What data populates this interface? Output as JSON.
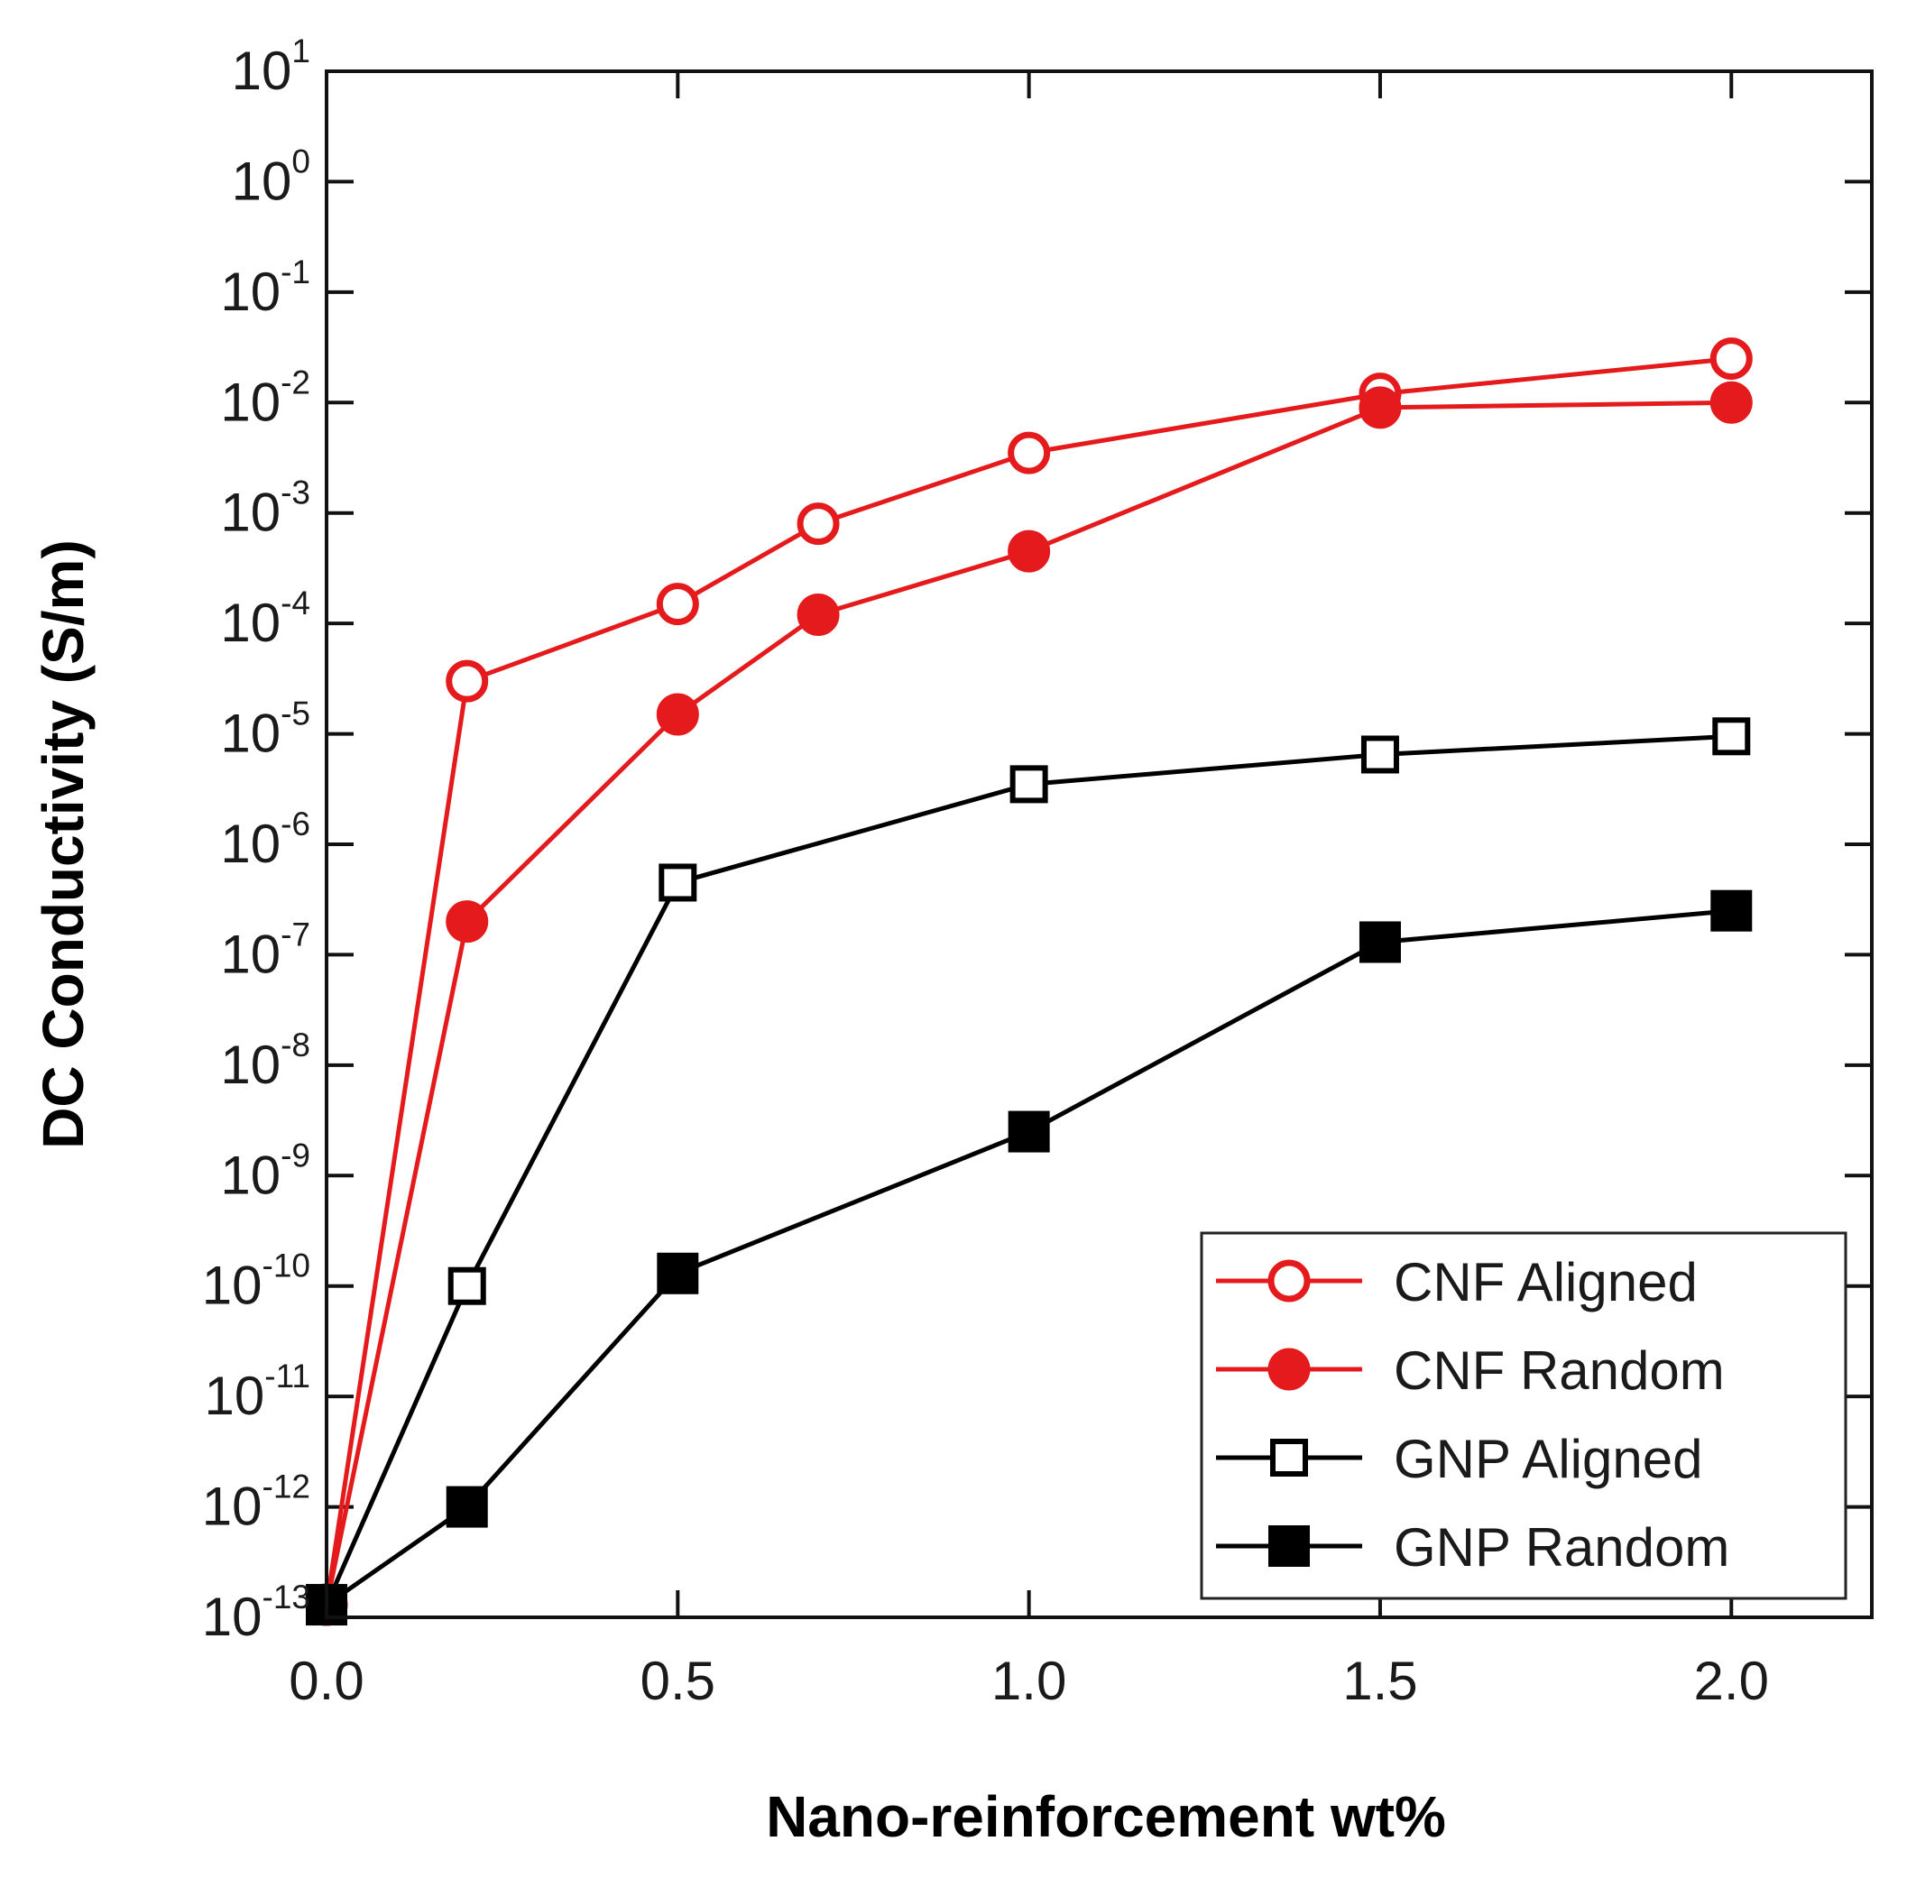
{
  "chart_data": {
    "type": "line",
    "title": "",
    "xlabel": "Nano-reinforcement wt%",
    "ylabel": "DC Conductivity (S/m)",
    "xlim": [
      0.0,
      2.2
    ],
    "ylim_exponent": [
      -13,
      1
    ],
    "yscale": "log",
    "x_ticks": [
      0.0,
      0.5,
      1.0,
      1.5,
      2.0
    ],
    "x_tick_labels": [
      "0.0",
      "0.5",
      "1.0",
      "1.5",
      "2.0"
    ],
    "y_tick_exponents": [
      1,
      0,
      -1,
      -2,
      -3,
      -4,
      -5,
      -6,
      -7,
      -8,
      -9,
      -10,
      -11,
      -12,
      -13
    ],
    "y_tick_labels": [
      {
        "base": "10",
        "exp": "1"
      },
      {
        "base": "10",
        "exp": "0"
      },
      {
        "base": "10",
        "exp": "-1"
      },
      {
        "base": "10",
        "exp": "-2"
      },
      {
        "base": "10",
        "exp": "-3"
      },
      {
        "base": "10",
        "exp": "-4"
      },
      {
        "base": "10",
        "exp": "-5"
      },
      {
        "base": "10",
        "exp": "-6"
      },
      {
        "base": "10",
        "exp": "-7"
      },
      {
        "base": "10",
        "exp": "-8"
      },
      {
        "base": "10",
        "exp": "-9"
      },
      {
        "base": "10",
        "exp": "-10"
      },
      {
        "base": "10",
        "exp": "-11"
      },
      {
        "base": "10",
        "exp": "-12"
      },
      {
        "base": "10",
        "exp": "-13"
      }
    ],
    "legend_position": "bottom-right",
    "series": [
      {
        "name": "CNF Aligned",
        "color": "#e41a1c",
        "marker": "circle",
        "filled": false,
        "x": [
          0.0,
          0.2,
          0.5,
          0.7,
          1.0,
          1.5,
          2.0
        ],
        "y": [
          1.3e-13,
          3e-05,
          0.00015,
          0.0008,
          0.0035,
          0.012,
          0.025
        ]
      },
      {
        "name": "CNF Random",
        "color": "#e41a1c",
        "marker": "circle",
        "filled": true,
        "x": [
          0.0,
          0.2,
          0.5,
          0.7,
          1.0,
          1.5,
          2.0
        ],
        "y": [
          1.3e-13,
          2e-07,
          1.5e-05,
          0.00012,
          0.00045,
          0.009,
          0.01
        ]
      },
      {
        "name": "GNP Aligned",
        "color": "#000000",
        "marker": "square",
        "filled": false,
        "x": [
          0.0,
          0.2,
          0.5,
          1.0,
          1.5,
          2.0
        ],
        "y": [
          1.3e-13,
          1e-10,
          4.5e-07,
          3.5e-06,
          6.5e-06,
          9.5e-06
        ]
      },
      {
        "name": "GNP Random",
        "color": "#000000",
        "marker": "square",
        "filled": true,
        "x": [
          0.0,
          0.2,
          0.5,
          1.0,
          1.5,
          2.0
        ],
        "y": [
          1.3e-13,
          1e-12,
          1.3e-10,
          2.5e-09,
          1.3e-07,
          2.5e-07
        ]
      }
    ]
  }
}
